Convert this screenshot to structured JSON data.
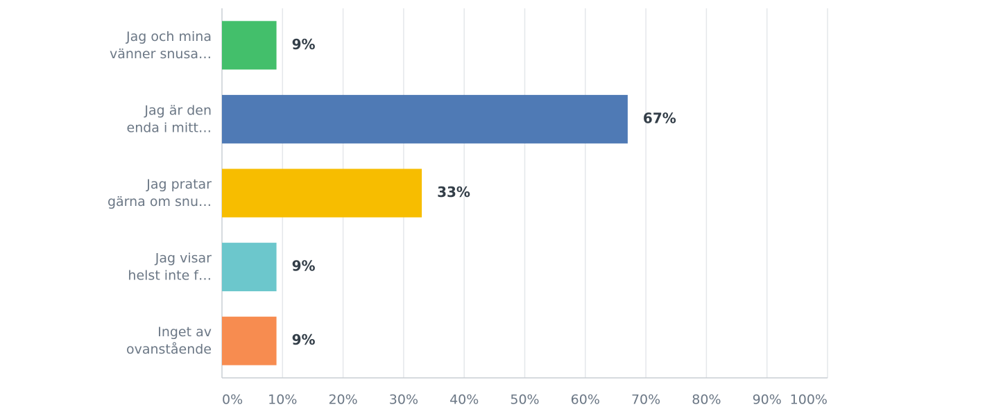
{
  "chart_data": {
    "type": "bar",
    "orientation": "horizontal",
    "categories": [
      "Jag och mina\nvänner snusa…",
      "Jag är den\nenda i mitt…",
      "Jag pratar\ngärna om snu…",
      "Jag visar\nhelst inte f…",
      "Inget av\novanstående"
    ],
    "values": [
      9,
      67,
      33,
      9,
      9
    ],
    "value_labels": [
      "9%",
      "67%",
      "33%",
      "9%",
      "9%"
    ],
    "colors": [
      "#43bf6b",
      "#4f7ab5",
      "#f7bd00",
      "#6cc7cc",
      "#f78c50"
    ],
    "xlim": [
      0,
      100
    ],
    "xticks": [
      {
        "value": 0,
        "label": "0%"
      },
      {
        "value": 10,
        "label": "10%"
      },
      {
        "value": 20,
        "label": "20%"
      },
      {
        "value": 30,
        "label": "30%"
      },
      {
        "value": 40,
        "label": "40%"
      },
      {
        "value": 50,
        "label": "50%"
      },
      {
        "value": 60,
        "label": "60%"
      },
      {
        "value": 70,
        "label": "70%"
      },
      {
        "value": 80,
        "label": "80%"
      },
      {
        "value": 90,
        "label": "90%"
      },
      {
        "value": 100,
        "label": "100%"
      }
    ],
    "grid": true
  }
}
